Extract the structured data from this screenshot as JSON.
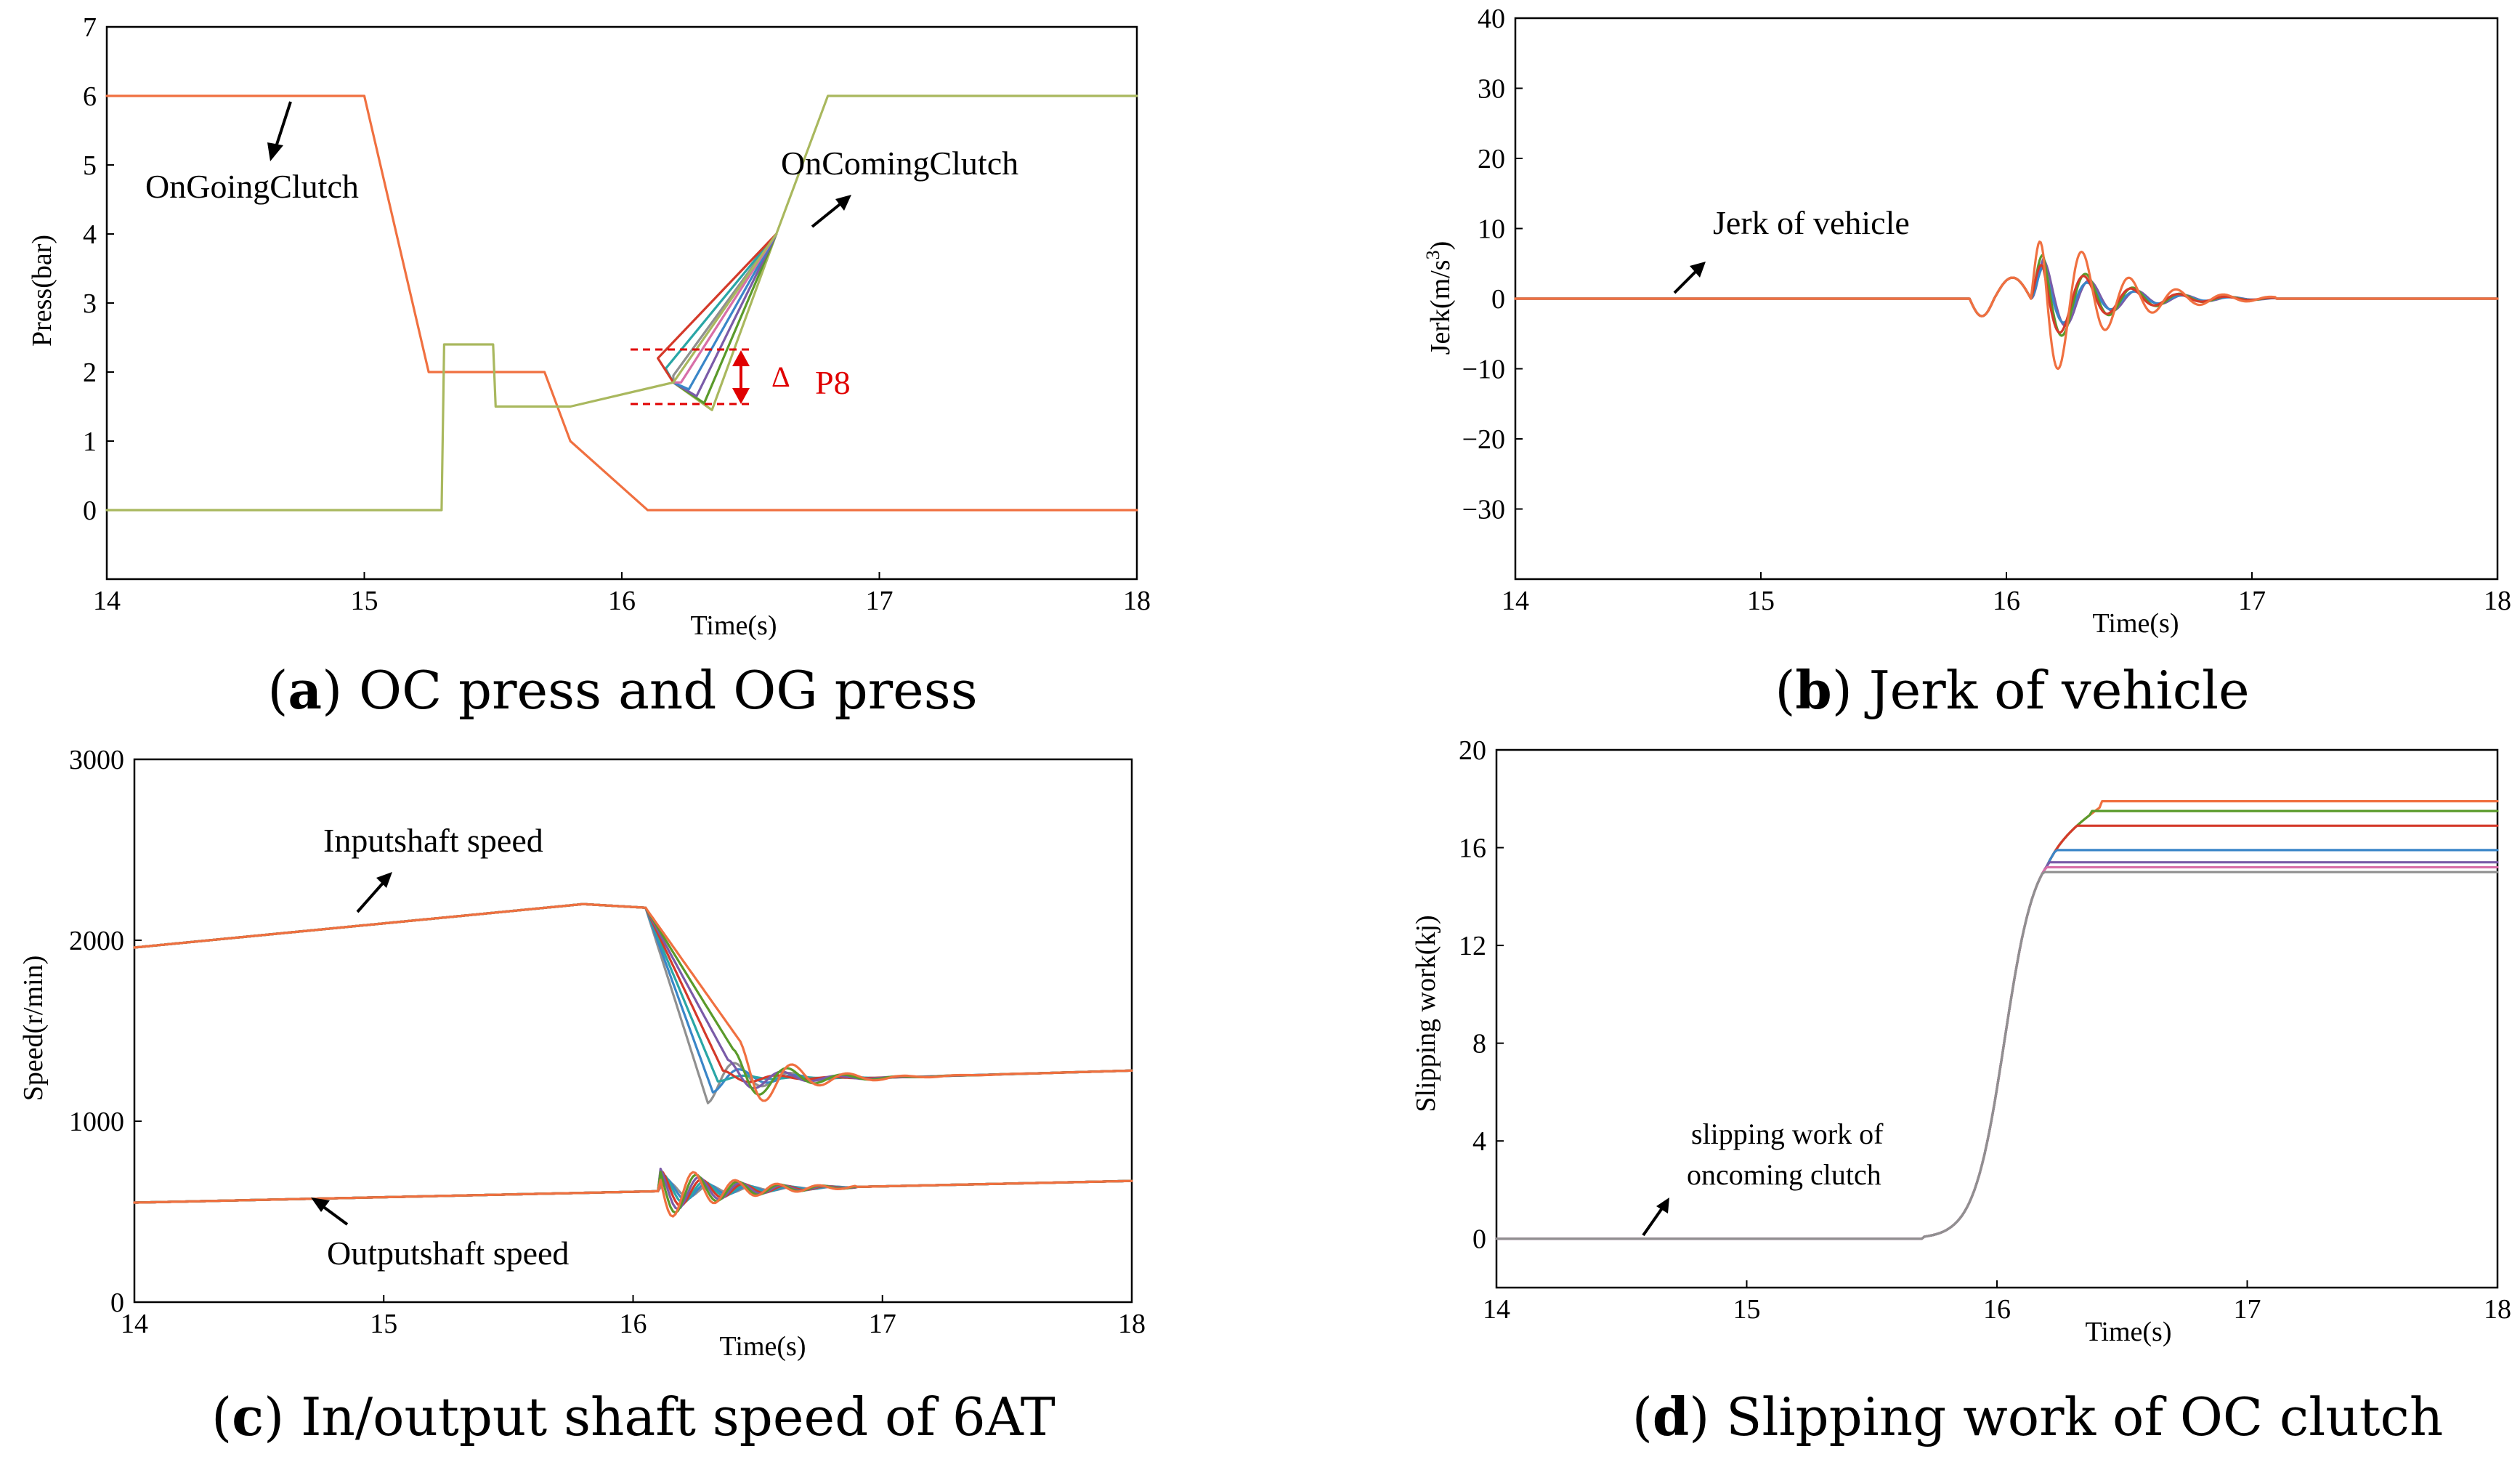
{
  "figure": {
    "colors": {
      "orange": "#F07040",
      "olive": "#A9B85E",
      "blue": "#3A86C8",
      "green": "#5A9A2A",
      "red": "#D43A2A",
      "purple": "#7A5BA8",
      "gray": "#909090",
      "pink": "#D86FA8",
      "teal": "#2AA6A6",
      "annotation_red": "#E00000"
    }
  },
  "chart_data": [
    {
      "id": "a",
      "type": "line",
      "caption_letter": "a",
      "caption_text": " OC press and OG press",
      "ylabel": "Press(bar)",
      "xlabel": "Time(s)",
      "xlim": [
        14,
        18
      ],
      "ylim": [
        -1,
        7
      ],
      "xticks": [
        14,
        15,
        16,
        17,
        18
      ],
      "yticks": [
        0,
        1,
        2,
        3,
        4,
        5,
        6,
        7
      ],
      "annotations": {
        "ongoing": "OnGoingClutch",
        "oncoming": "OnComingClutch",
        "delta_symbol": "Δ",
        "delta_label": "P8"
      },
      "series": [
        {
          "name": "OnGoingClutch",
          "color": "orange",
          "x": [
            14,
            15.0,
            15.25,
            15.7,
            15.8,
            16.1,
            18
          ],
          "y": [
            6,
            6,
            2.0,
            2.0,
            1.0,
            0,
            0
          ]
        },
        {
          "name": "OnComingClutch",
          "color": "olive",
          "x": [
            14,
            15.3,
            15.31,
            15.5,
            15.51,
            15.8,
            16.2,
            16.6,
            16.8,
            18
          ],
          "y": [
            0,
            0,
            2.4,
            2.4,
            1.5,
            1.5,
            1.85,
            4.0,
            6,
            6
          ]
        }
      ],
      "fan": {
        "x_start": 16.2,
        "y_start": 1.85,
        "x_min": 16.35,
        "x_join": 16.6,
        "y_join": 4.0,
        "y_mins": [
          1.45,
          1.55,
          1.65,
          1.75,
          1.85,
          1.95,
          2.05,
          2.2
        ],
        "colors": [
          "olive",
          "green",
          "purple",
          "blue",
          "pink",
          "gray",
          "teal",
          "red"
        ]
      }
    },
    {
      "id": "b",
      "type": "line",
      "caption_letter": "b",
      "caption_text": " Jerk of vehicle",
      "ylabel": "Jerk(m/s",
      "ylabel_sup": "3",
      "ylabel_close": ")",
      "xlabel": "Time(s)",
      "xlim": [
        14,
        18
      ],
      "ylim": [
        -40,
        40
      ],
      "xticks": [
        14,
        15,
        16,
        17,
        18
      ],
      "yticks": [
        -30,
        -20,
        -10,
        0,
        10,
        20,
        30,
        40
      ],
      "yticks_labels": [
        "−30",
        "−20",
        "−10",
        "0",
        "10",
        "20",
        "30",
        "40"
      ],
      "annotations": {
        "jerk": "Jerk of vehicle"
      },
      "series_colors": [
        "purple",
        "blue",
        "green",
        "red",
        "orange"
      ],
      "series_amplitude": [
        7,
        6,
        9,
        8,
        16
      ]
    },
    {
      "id": "c",
      "type": "line",
      "caption_letter": "c",
      "caption_text": " In/output shaft speed of 6AT",
      "ylabel": "Speed(r/min)",
      "xlabel": "Time(s)",
      "xlim": [
        14,
        18
      ],
      "ylim": [
        0,
        3000
      ],
      "xticks": [
        14,
        15,
        16,
        17,
        18
      ],
      "yticks": [
        0,
        1000,
        2000,
        3000
      ],
      "annotations": {
        "input": "Inputshaft speed",
        "output": "Outputshaft speed"
      },
      "input_series": {
        "x": [
          14,
          15.8,
          16.05,
          16.3,
          17.0,
          18
        ],
        "y": [
          1960,
          2200,
          2180,
          1100,
          1240,
          1280
        ]
      },
      "output_series": {
        "x": [
          14,
          16.0,
          17.0,
          18
        ],
        "y": [
          550,
          630,
          650,
          670
        ]
      },
      "series_colors": [
        "gray",
        "blue",
        "teal",
        "red",
        "purple",
        "green",
        "orange"
      ]
    },
    {
      "id": "d",
      "type": "line",
      "caption_letter": "d",
      "caption_text": " Slipping work of OC clutch",
      "ylabel": "Slipping work(kj)",
      "xlabel": "Time(s)",
      "xlim": [
        14,
        18
      ],
      "ylim": [
        -2,
        20
      ],
      "xticks": [
        14,
        15,
        16,
        17,
        18
      ],
      "yticks": [
        0,
        4,
        8,
        12,
        16,
        20
      ],
      "annotations": {
        "line1": "slipping work of",
        "line2": "oncoming clutch"
      },
      "final_values": [
        17.9,
        17.5,
        16.9,
        15.9,
        15.4,
        15.2,
        15.0
      ],
      "final_colors": [
        "orange",
        "green",
        "red",
        "blue",
        "purple",
        "pink",
        "gray"
      ],
      "x_plateau": [
        16.42,
        16.38,
        16.34,
        16.3,
        16.28,
        16.26,
        16.24
      ]
    }
  ]
}
